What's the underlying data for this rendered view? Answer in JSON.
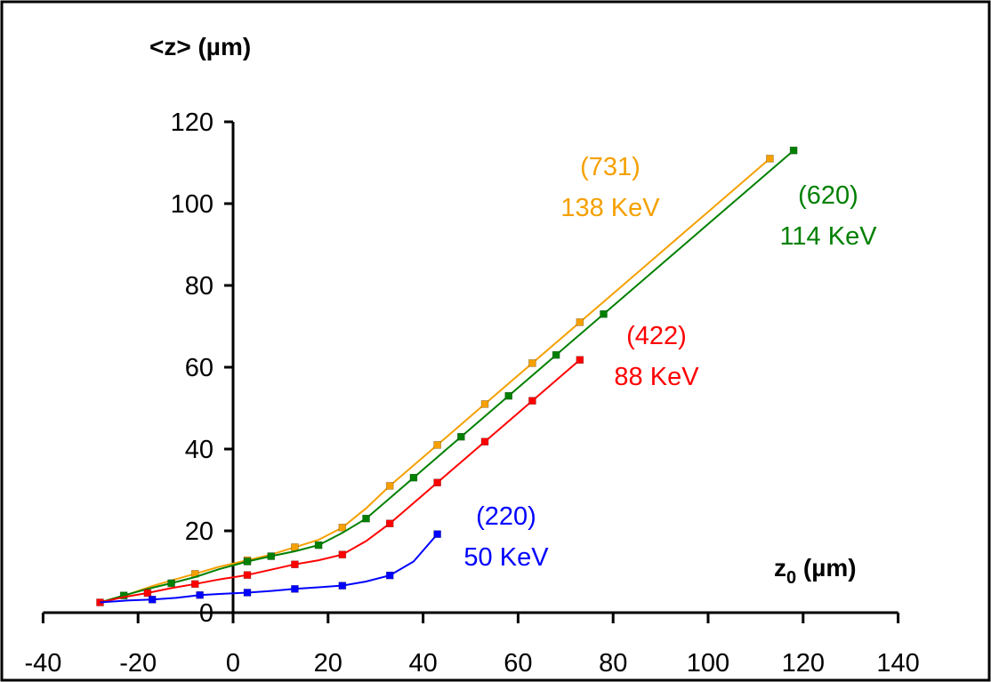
{
  "chart_data": {
    "type": "line",
    "ylabel": "<z> (µm)",
    "xlabel_main": "z",
    "xlabel_sub": "0",
    "xlabel_unit": " (µm)",
    "xlim": [
      -40,
      140
    ],
    "ylim": [
      0,
      120
    ],
    "x_ticks": [
      -40,
      -20,
      0,
      20,
      40,
      60,
      80,
      100,
      120,
      140
    ],
    "x_tick_labels": [
      "-40",
      "-20",
      "0",
      "20",
      "40",
      "60",
      "80",
      "100",
      "120",
      "140"
    ],
    "y_ticks": [
      0,
      20,
      40,
      60,
      80,
      100,
      120
    ],
    "y_tick_labels": [
      "0",
      "20",
      "40",
      "60",
      "80",
      "100",
      "120"
    ],
    "grid": false,
    "series": [
      {
        "name": "(731) 138 KeV",
        "label_line1": "(731)",
        "label_line2": "138 KeV",
        "color": "#f5a000",
        "x": [
          -8,
          3,
          13,
          23,
          33,
          43,
          53,
          63,
          73,
          113
        ],
        "y": [
          9.5,
          12.8,
          16,
          20.8,
          31,
          41,
          51,
          61,
          71,
          111
        ],
        "line_x": [
          -28,
          -22,
          -17,
          -12,
          -8,
          -3,
          3,
          8,
          13,
          18,
          23,
          28,
          33,
          38,
          43,
          48,
          53,
          58,
          63,
          68,
          73,
          80,
          90,
          100,
          113
        ],
        "line_y": [
          2.5,
          4.5,
          6.5,
          8.2,
          9.5,
          11.2,
          12.8,
          14.2,
          16,
          17.8,
          20.8,
          25.5,
          31,
          36,
          41,
          46,
          51,
          56,
          61,
          66,
          71,
          78,
          88,
          98,
          111
        ]
      },
      {
        "name": "(620) 114 KeV",
        "label_line1": "(620)",
        "label_line2": "114 KeV",
        "color": "#008000",
        "x": [
          -23,
          -13,
          3,
          8,
          18,
          28,
          38,
          48,
          58,
          68,
          78,
          118
        ],
        "y": [
          4.2,
          7.2,
          12.5,
          13.8,
          16.5,
          23,
          33,
          43,
          53,
          63,
          73,
          113
        ],
        "line_x": [
          -28,
          -23,
          -18,
          -13,
          -8,
          -3,
          3,
          8,
          13,
          18,
          23,
          28,
          33,
          38,
          43,
          48,
          53,
          58,
          63,
          68,
          73,
          78,
          88,
          98,
          108,
          118
        ],
        "line_y": [
          2.5,
          4.2,
          5.8,
          7.2,
          8.7,
          10.6,
          12.5,
          13.8,
          15,
          16.5,
          19.5,
          23,
          28,
          33,
          38,
          43,
          48,
          53,
          58,
          63,
          68,
          73,
          83,
          93,
          103,
          113
        ]
      },
      {
        "name": "(422) 88 KeV",
        "label_line1": "(422)",
        "label_line2": "88 KeV",
        "color": "#ff0000",
        "x": [
          -28,
          -18,
          -8,
          3,
          13,
          23,
          33,
          43,
          53,
          63,
          73
        ],
        "y": [
          2.5,
          4.8,
          7,
          9.2,
          11.8,
          14.2,
          21.8,
          31.8,
          41.8,
          51.8,
          61.8
        ],
        "line_x": [
          -28,
          -23,
          -18,
          -13,
          -8,
          -3,
          3,
          8,
          13,
          18,
          23,
          28,
          33,
          38,
          43,
          48,
          53,
          58,
          63,
          68,
          73
        ],
        "line_y": [
          2.5,
          3.8,
          4.8,
          6,
          7,
          8.1,
          9.2,
          10.5,
          11.8,
          12.8,
          14.2,
          17.5,
          21.8,
          26.8,
          31.8,
          36.8,
          41.8,
          46.8,
          51.8,
          56.8,
          61.8
        ]
      },
      {
        "name": "(220) 50 KeV",
        "label_line1": "(220)",
        "label_line2": "50 KeV",
        "color": "#0000ff",
        "x": [
          -17,
          -7,
          3,
          13,
          23,
          33,
          43
        ],
        "y": [
          3.2,
          4.3,
          4.9,
          5.8,
          6.6,
          9.1,
          19.2
        ],
        "line_x": [
          -28,
          -22,
          -17,
          -12,
          -7,
          -2,
          3,
          8,
          13,
          18,
          23,
          28,
          33,
          38,
          43
        ],
        "line_y": [
          2.5,
          3,
          3.2,
          3.6,
          4.3,
          4.6,
          4.9,
          5.3,
          5.8,
          6.2,
          6.6,
          7.6,
          9.1,
          12.5,
          19.2
        ]
      }
    ]
  }
}
